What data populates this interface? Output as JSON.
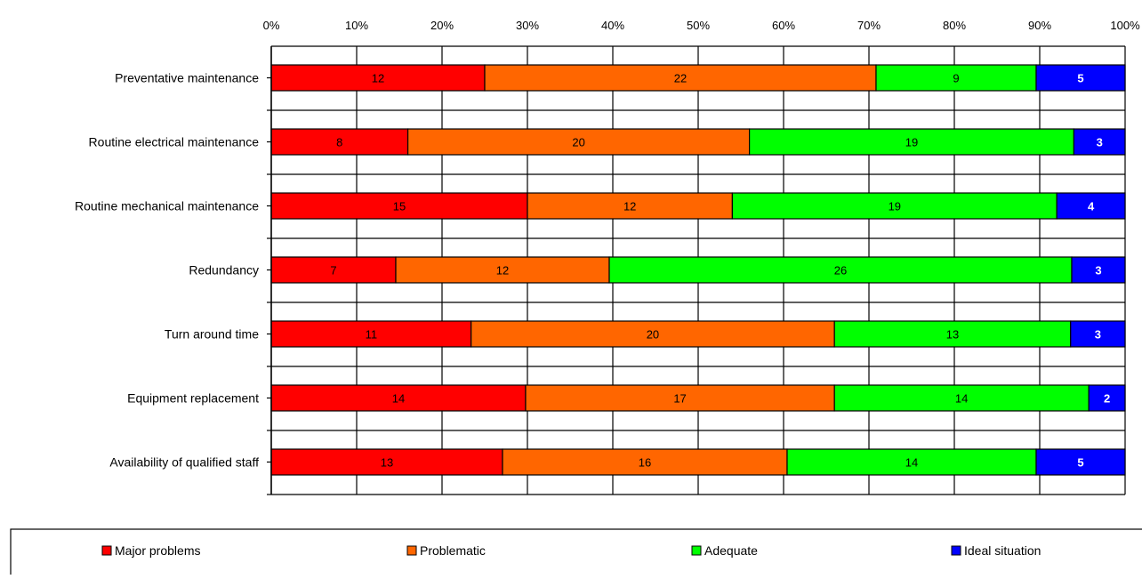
{
  "chart_data": {
    "type": "bar",
    "orientation": "horizontal",
    "stacked": true,
    "normalized_percent": true,
    "categories": [
      "Preventative maintenance",
      "Routine electrical maintenance",
      "Routine mechanical maintenance",
      "Redundancy",
      "Turn around time",
      "Equipment replacement",
      "Availability of qualified staff"
    ],
    "series": [
      {
        "name": "Major problems",
        "color": "#ff0000",
        "values": [
          12,
          8,
          15,
          7,
          11,
          14,
          13
        ]
      },
      {
        "name": "Problematic",
        "color": "#ff6600",
        "values": [
          22,
          20,
          12,
          12,
          20,
          17,
          16
        ]
      },
      {
        "name": "Adequate",
        "color": "#00ff00",
        "values": [
          9,
          19,
          19,
          26,
          13,
          14,
          14
        ]
      },
      {
        "name": "Ideal situation",
        "color": "#0000ff",
        "values": [
          5,
          3,
          4,
          3,
          3,
          2,
          5
        ]
      }
    ],
    "x_ticks": [
      "0%",
      "10%",
      "20%",
      "30%",
      "40%",
      "50%",
      "60%",
      "70%",
      "80%",
      "90%",
      "100%"
    ],
    "xlim": [
      0,
      100
    ],
    "x_axis_position": "top",
    "grid": true,
    "legend_placement": "bottom",
    "data_labels": true
  }
}
